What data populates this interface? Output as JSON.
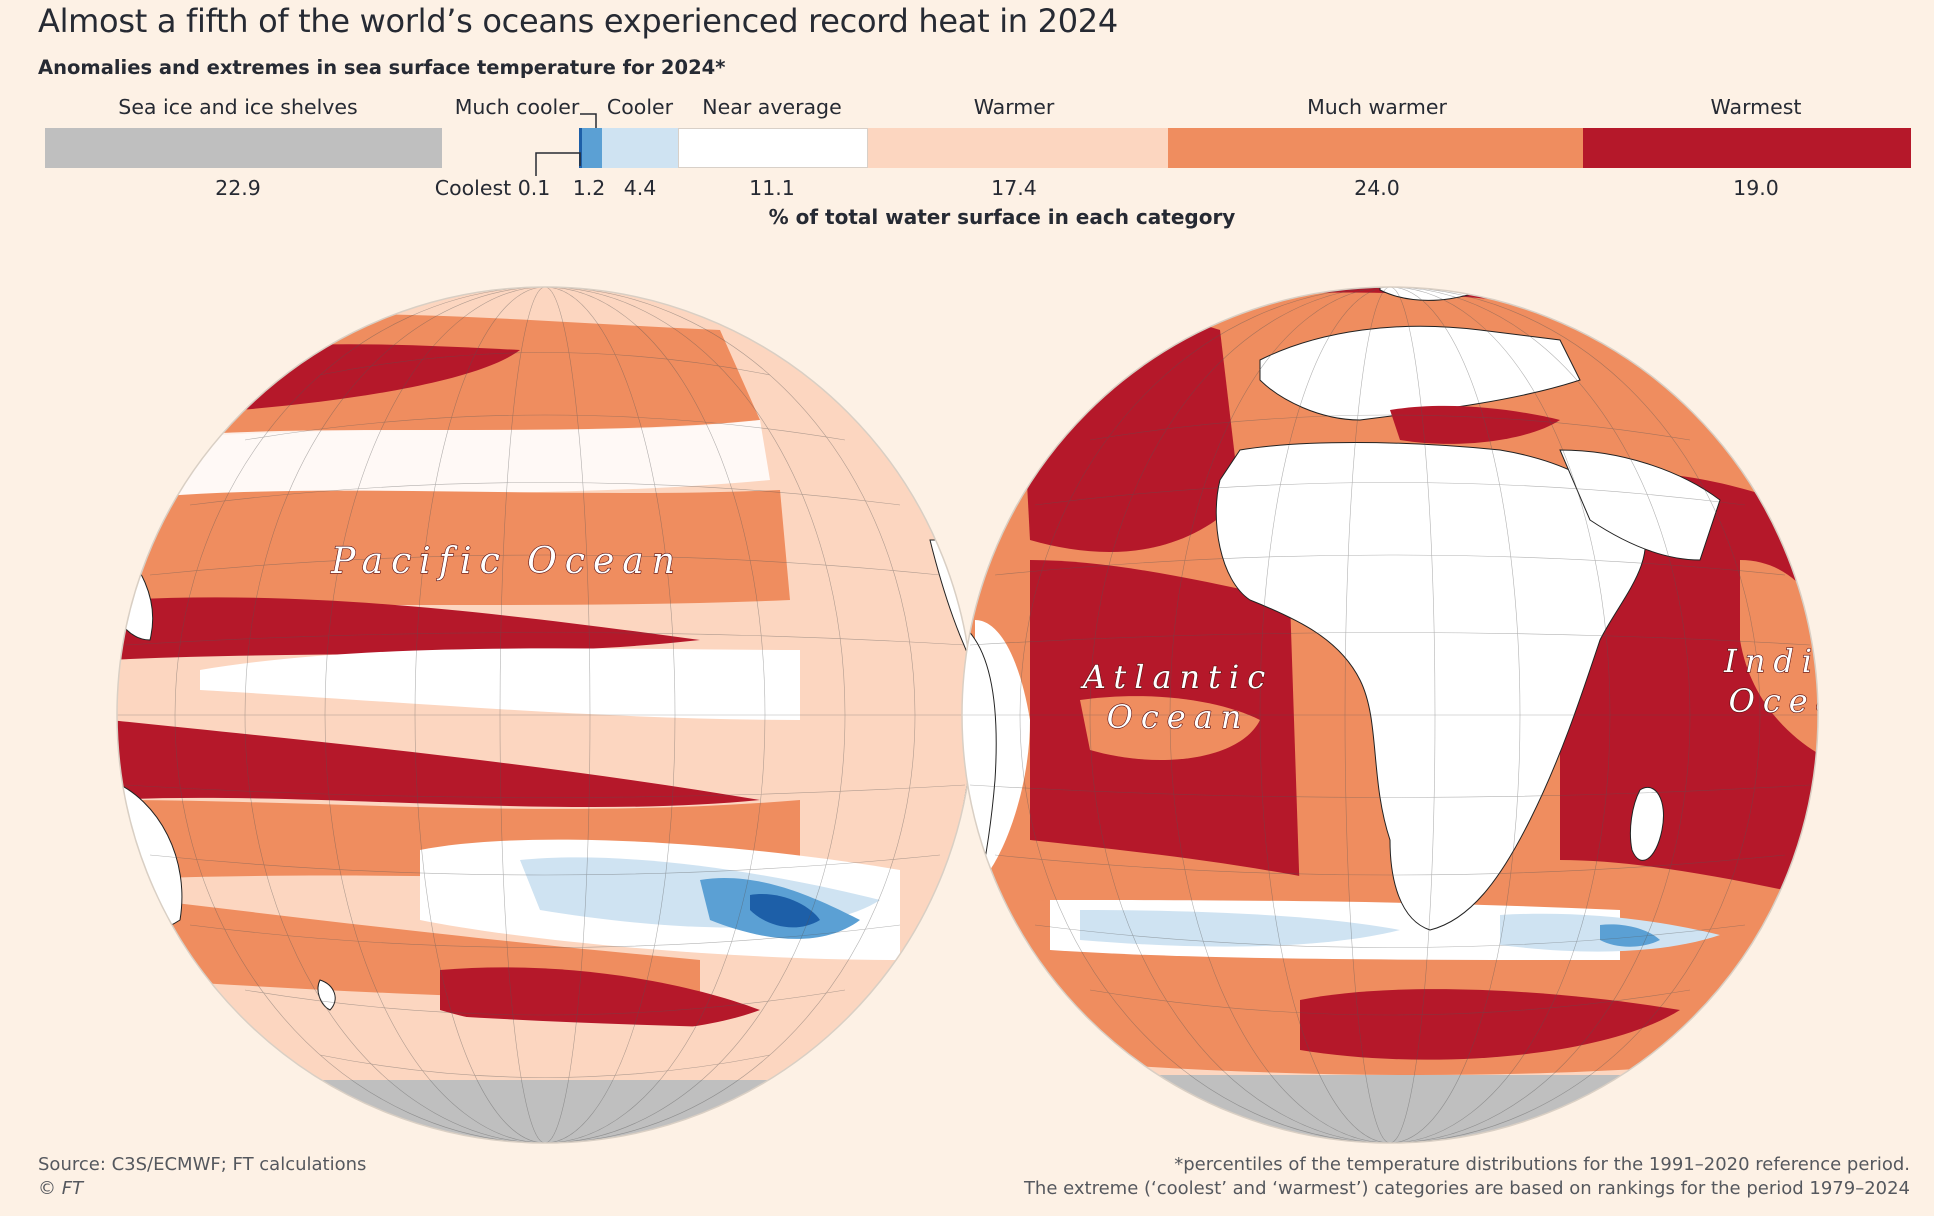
{
  "title": "Almost a fifth of the world’s oceans experienced record heat in 2024",
  "subtitle": "Anomalies and extremes in sea surface temperature for 2024*",
  "legend": {
    "categories": [
      {
        "label": "Sea ice and ice shelves",
        "value": "22.9",
        "color": "#bfbfbf"
      },
      {
        "label": "Coolest",
        "value": "0.1",
        "color": "#1d5fa8"
      },
      {
        "label": "Much cooler",
        "value": "1.2",
        "color": "#5ba0d4"
      },
      {
        "label": "Cooler",
        "value": "4.4",
        "color": "#cfe3f2"
      },
      {
        "label": "Near average",
        "value": "11.1",
        "color": "#ffffff"
      },
      {
        "label": "Warmer",
        "value": "17.4",
        "color": "#fcd6c0"
      },
      {
        "label": "Much warmer",
        "value": "24.0",
        "color": "#ef8d5f"
      },
      {
        "label": "Warmest",
        "value": "19.0",
        "color": "#b5182a"
      }
    ],
    "axis_note": "% of total water surface in each category"
  },
  "ocean_labels": {
    "pacific": "Pacific Ocean",
    "atlantic_line1": "Atlantic",
    "atlantic_line2": "Ocean",
    "indian_line1": "Indian",
    "indian_line2": "Ocean"
  },
  "source": "Source: C3S/ECMWF; FT calculations",
  "copyright": "© FT",
  "footnote_line1": "*percentiles of the temperature distributions for the 1991–2020 reference period.",
  "footnote_line2": "The extreme (‘coolest’ and ‘warmest’) categories are based on rankings for the period 1979–2024"
}
